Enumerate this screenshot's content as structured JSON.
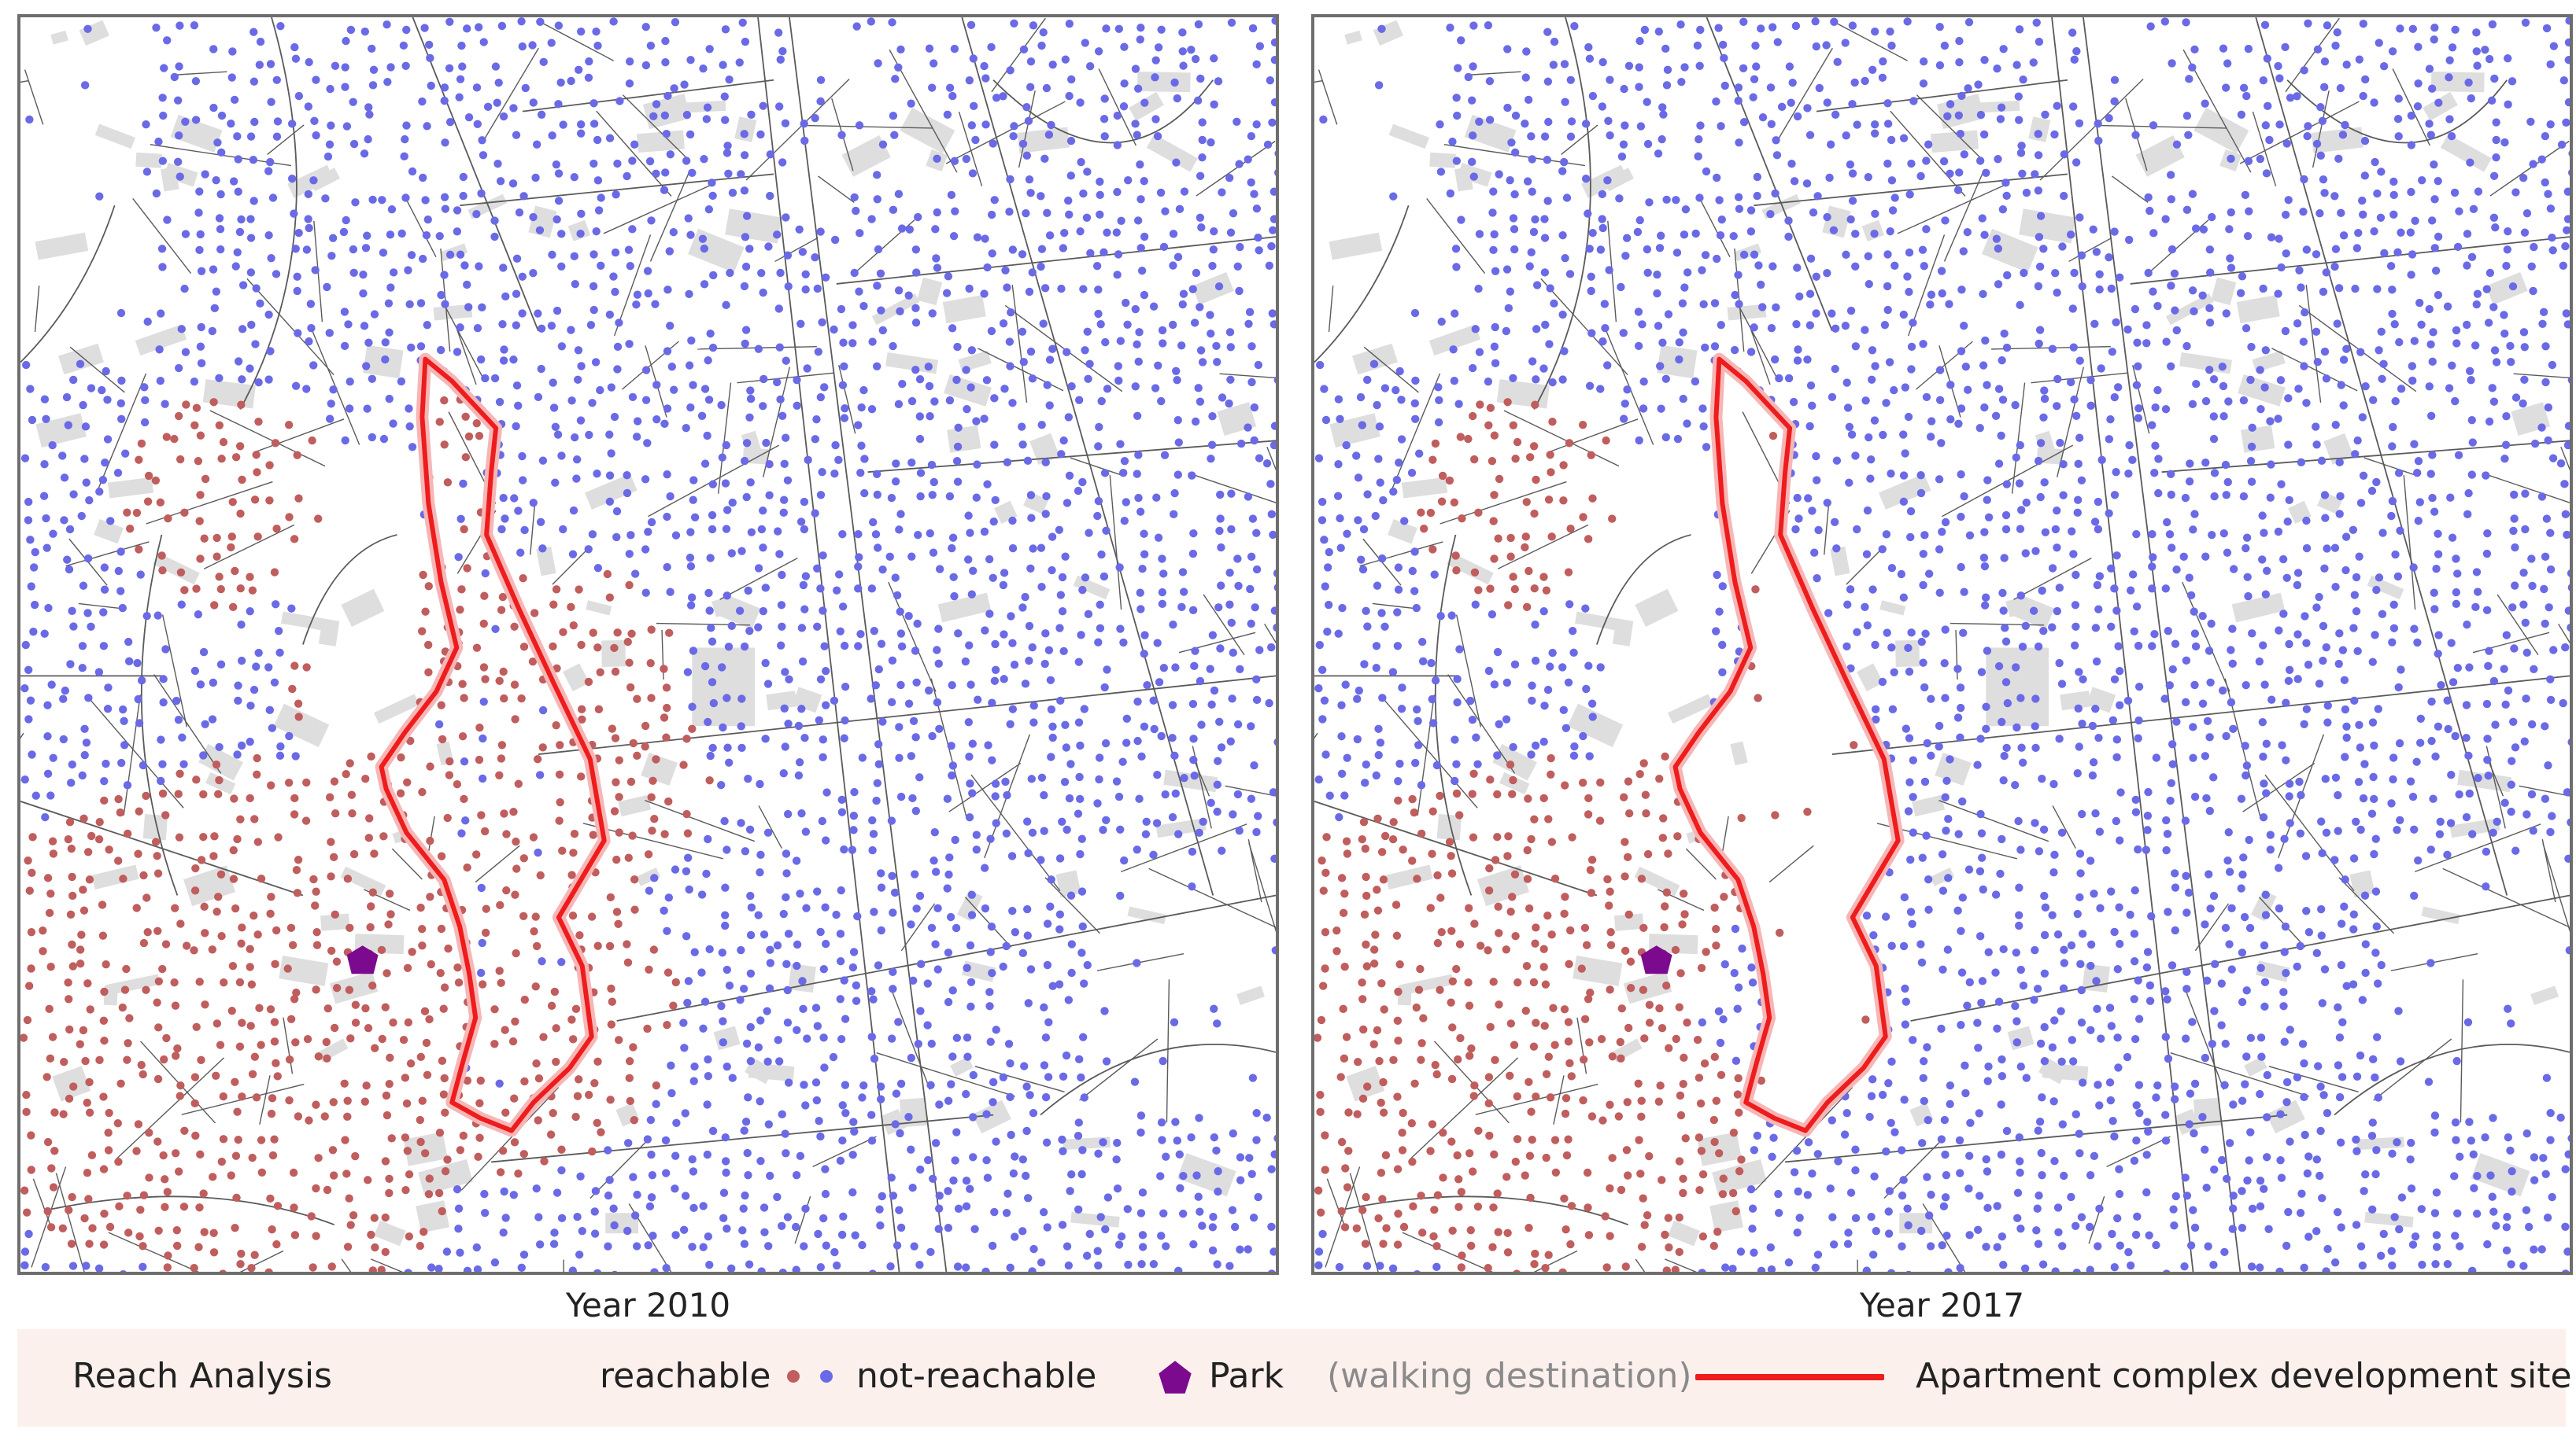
{
  "panels": [
    {
      "id": "left",
      "caption": "Year 2010"
    },
    {
      "id": "right",
      "caption": "Year 2017"
    }
  ],
  "legend": {
    "title": "Reach Analysis",
    "reachable": "reachable",
    "not_reachable": "not-reachable",
    "park": "Park",
    "park_note": "(walking destination)",
    "site": "Apartment complex development site"
  },
  "colors": {
    "reachable": "#c05d5d",
    "not_reachable": "#6a6ae6",
    "park": "#7b0a8e",
    "site_boundary": "#ee1c1c",
    "buildings": "#dedede",
    "streets": "#5a5a5a",
    "legend_background": "#fcf0ec"
  },
  "icons": {
    "park": "park-pentagon-icon",
    "reachable": "reachable-dot-icon",
    "not_reachable": "not-reachable-dot-icon"
  }
}
